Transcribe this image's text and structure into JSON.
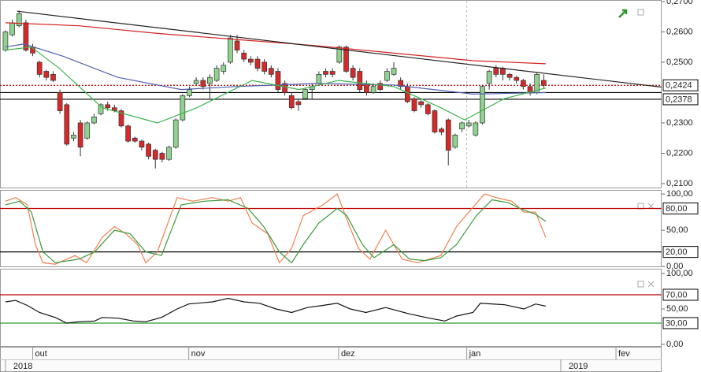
{
  "chart_data": [
    {
      "type": "candlestick",
      "xlim": [
        -0.8,
        96.3
      ],
      "xticks": [
        {
          "value": 4,
          "label": "out"
        },
        {
          "value": 26.9,
          "label": "nov"
        },
        {
          "value": 48.9,
          "label": "dez"
        },
        {
          "value": 67.7,
          "label": "jan"
        },
        {
          "value": 89.6,
          "label": "fev"
        }
      ],
      "year_labels": [
        {
          "value": 0,
          "label": "2018"
        },
        {
          "value": 81.5,
          "label": "2019"
        }
      ],
      "vlines": [
        67.7
      ],
      "ylim": [
        0.2087,
        0.2705
      ],
      "yticks": [
        {
          "value": 0.27,
          "label": "0,2700"
        },
        {
          "value": 0.26,
          "label": "0,2600"
        },
        {
          "value": 0.25,
          "label": "0,2500"
        },
        {
          "value": 0.23,
          "label": "0,2300"
        },
        {
          "value": 0.22,
          "label": "0,2200"
        },
        {
          "value": 0.21,
          "label": "0,2100"
        }
      ],
      "levels": [
        {
          "value": 0.2424,
          "label": "0,2424",
          "color": "#c00000",
          "dashed": true
        },
        {
          "value": 0.24,
          "color": "#000000"
        },
        {
          "value": 0.2378,
          "label": "0,2378",
          "color": "#000000"
        }
      ],
      "up_color": "#8fd18f",
      "down_color": "#d42a2a",
      "open": [
        0.254,
        0.259,
        0.262,
        0.263,
        0.255,
        0.25,
        0.247,
        0.246,
        0.24,
        0.236,
        0.225,
        0.23,
        0.225,
        0.23,
        0.233,
        0.236,
        0.235,
        0.234,
        0.229,
        0.225,
        0.224,
        0.223,
        0.221,
        0.22,
        0.218,
        0.222,
        0.231,
        0.239,
        0.243,
        0.244,
        0.243,
        0.244,
        0.247,
        0.25,
        0.257,
        0.253,
        0.251,
        0.251,
        0.25,
        0.248,
        0.247,
        0.243,
        0.239,
        0.237,
        0.238,
        0.241,
        0.243,
        0.247,
        0.247,
        0.25,
        0.255,
        0.248,
        0.247,
        0.243,
        0.24,
        0.243,
        0.244,
        0.246,
        0.244,
        0.242,
        0.238,
        0.237,
        0.236,
        0.234,
        0.228,
        0.231,
        0.222,
        0.228,
        0.229,
        0.226,
        0.23,
        0.243,
        0.248,
        0.248,
        0.246,
        0.245,
        0.244,
        0.242,
        0.24,
        0.244
      ],
      "high": [
        0.2605,
        0.264,
        0.267,
        0.264,
        0.256,
        0.2505,
        0.2475,
        0.247,
        0.241,
        0.2365,
        0.227,
        0.231,
        0.2305,
        0.233,
        0.2365,
        0.237,
        0.236,
        0.2345,
        0.2295,
        0.2255,
        0.2245,
        0.2235,
        0.2215,
        0.2205,
        0.2225,
        0.2315,
        0.2395,
        0.242,
        0.245,
        0.245,
        0.246,
        0.249,
        0.25,
        0.259,
        0.259,
        0.254,
        0.252,
        0.252,
        0.251,
        0.249,
        0.248,
        0.244,
        0.24,
        0.238,
        0.2415,
        0.243,
        0.247,
        0.248,
        0.248,
        0.2555,
        0.2555,
        0.249,
        0.248,
        0.244,
        0.243,
        0.244,
        0.248,
        0.25,
        0.245,
        0.243,
        0.2385,
        0.2375,
        0.2365,
        0.2345,
        0.2285,
        0.2315,
        0.2265,
        0.2305,
        0.231,
        0.2305,
        0.2425,
        0.2475,
        0.249,
        0.2485,
        0.2465,
        0.2455,
        0.2445,
        0.243,
        0.2465,
        0.246
      ],
      "low": [
        0.2535,
        0.2585,
        0.2615,
        0.2535,
        0.252,
        0.245,
        0.244,
        0.2435,
        0.233,
        0.2225,
        0.224,
        0.219,
        0.2245,
        0.2295,
        0.2325,
        0.234,
        0.2335,
        0.2285,
        0.2235,
        0.2235,
        0.221,
        0.218,
        0.215,
        0.217,
        0.2175,
        0.2215,
        0.2305,
        0.2385,
        0.2425,
        0.241,
        0.238,
        0.2435,
        0.246,
        0.2495,
        0.253,
        0.25,
        0.249,
        0.247,
        0.246,
        0.245,
        0.24,
        0.239,
        0.2345,
        0.234,
        0.2375,
        0.238,
        0.2425,
        0.245,
        0.245,
        0.2495,
        0.2465,
        0.244,
        0.24,
        0.239,
        0.2395,
        0.2405,
        0.2435,
        0.2455,
        0.241,
        0.2365,
        0.2335,
        0.235,
        0.2325,
        0.2265,
        0.226,
        0.216,
        0.2215,
        0.227,
        0.2285,
        0.2255,
        0.2295,
        0.241,
        0.245,
        0.244,
        0.244,
        0.243,
        0.241,
        0.239,
        0.2395,
        0.2415
      ],
      "close": [
        0.26,
        0.263,
        0.266,
        0.254,
        0.253,
        0.246,
        0.245,
        0.244,
        0.234,
        0.223,
        0.226,
        0.222,
        0.23,
        0.232,
        0.236,
        0.235,
        0.234,
        0.229,
        0.224,
        0.224,
        0.222,
        0.219,
        0.218,
        0.218,
        0.222,
        0.231,
        0.239,
        0.241,
        0.244,
        0.242,
        0.245,
        0.248,
        0.249,
        0.258,
        0.254,
        0.251,
        0.25,
        0.248,
        0.247,
        0.246,
        0.241,
        0.24,
        0.235,
        0.236,
        0.241,
        0.242,
        0.246,
        0.246,
        0.246,
        0.255,
        0.247,
        0.245,
        0.241,
        0.24,
        0.242,
        0.241,
        0.247,
        0.248,
        0.242,
        0.237,
        0.234,
        0.236,
        0.233,
        0.227,
        0.227,
        0.221,
        0.226,
        0.23,
        0.23,
        0.23,
        0.242,
        0.247,
        0.246,
        0.246,
        0.245,
        0.244,
        0.242,
        0.24,
        0.246,
        0.2424
      ],
      "series": [
        {
          "color": "#d62020",
          "x": [
            0,
            10.8,
            22.3,
            33.9,
            45.4,
            57,
            68.6,
            79.3
          ],
          "values": [
            0.263,
            0.262,
            0.2595,
            0.2575,
            0.2555,
            0.253,
            0.2505,
            0.2495
          ]
        },
        {
          "color": "#5060b0",
          "x": [
            0,
            2.7,
            8.4,
            16.5,
            25.8,
            33.9,
            45.4,
            57,
            68.6,
            79.3
          ],
          "values": [
            0.255,
            0.256,
            0.252,
            0.245,
            0.241,
            0.242,
            0.243,
            0.2425,
            0.2395,
            0.24
          ]
        },
        {
          "color": "#3cb34a",
          "x": [
            0,
            3.8,
            7.9,
            14.2,
            22.3,
            28.1,
            36.2,
            43.1,
            48.9,
            57,
            63.9,
            67.4,
            73.2,
            79.3
          ],
          "values": [
            0.254,
            0.255,
            0.248,
            0.235,
            0.23,
            0.235,
            0.244,
            0.241,
            0.244,
            0.242,
            0.235,
            0.231,
            0.238,
            0.2415
          ]
        },
        {
          "color": "#222222",
          "x": [
            1.7,
            96.3
          ],
          "values": [
            0.2668,
            0.2418
          ]
        }
      ]
    },
    {
      "type": "line",
      "ylim": [
        -1.1,
        105.6
      ],
      "yticks": [
        {
          "value": 100,
          "label": "100,00"
        },
        {
          "value": 50,
          "label": "50,00"
        },
        {
          "value": 0,
          "label": "0,00"
        }
      ],
      "levels": [
        {
          "value": 80,
          "label": "80,00",
          "color": "#c00000"
        },
        {
          "value": 20,
          "label": "20,00",
          "color": "#000000"
        }
      ],
      "series": [
        {
          "color": "#f08050",
          "x": [
            0,
            1.5,
            3.2,
            4.4,
            5.5,
            7.3,
            10.2,
            11.9,
            14.2,
            16,
            17.7,
            19.4,
            20.6,
            22.3,
            25.2,
            27.5,
            30.4,
            32.7,
            34.5,
            36.2,
            38.5,
            40.2,
            42,
            43.7,
            46.6,
            48.7,
            50.1,
            51.8,
            53.5,
            55.8,
            58.2,
            60.5,
            62.2,
            63.9,
            66.2,
            68,
            70.3,
            72,
            74.3,
            76.1,
            77.8,
            79.3
          ],
          "values": [
            90,
            95,
            85,
            30,
            5,
            3,
            15,
            5,
            40,
            55,
            45,
            30,
            5,
            20,
            95,
            90,
            95,
            90,
            95,
            60,
            45,
            5,
            25,
            70,
            85,
            100,
            65,
            25,
            10,
            50,
            10,
            5,
            10,
            15,
            55,
            75,
            100,
            95,
            90,
            75,
            75,
            40
          ]
        },
        {
          "color": "#3a9a3a",
          "x": [
            0,
            2.1,
            3.8,
            5.5,
            7.3,
            10.8,
            13.1,
            16,
            18.3,
            20.6,
            22.9,
            25.8,
            29.2,
            32.7,
            35.6,
            37.9,
            40.2,
            42,
            43.7,
            46,
            48.7,
            50.1,
            52.4,
            54.1,
            57,
            59.3,
            61.6,
            63.9,
            66.2,
            69.1,
            71.4,
            73.8,
            75.5,
            77.8,
            79.3
          ],
          "values": [
            85,
            90,
            75,
            20,
            5,
            10,
            20,
            50,
            45,
            20,
            15,
            85,
            90,
            92,
            80,
            55,
            20,
            5,
            30,
            60,
            80,
            70,
            30,
            12,
            30,
            10,
            8,
            12,
            30,
            70,
            92,
            88,
            80,
            72,
            62
          ]
        }
      ]
    },
    {
      "type": "line",
      "ylim": [
        -3.4,
        106.7
      ],
      "yticks": [
        {
          "value": 100,
          "label": "100,00"
        },
        {
          "value": 50,
          "label": "50,00"
        },
        {
          "value": 0,
          "label": "0,00"
        }
      ],
      "levels": [
        {
          "value": 70,
          "label": "70,00",
          "color": "#c00000"
        },
        {
          "value": 30,
          "label": "30,00",
          "color": "#2a9a2a"
        }
      ],
      "series": [
        {
          "color": "#111111",
          "x": [
            0,
            1.5,
            3.2,
            5,
            7.3,
            9,
            10.8,
            13.1,
            14.2,
            16.5,
            18.8,
            20.6,
            22.9,
            25.2,
            26.9,
            30.4,
            32.7,
            35,
            37.3,
            39.7,
            42,
            44.3,
            46.6,
            48.7,
            50.6,
            52.9,
            55.8,
            59.3,
            62.2,
            64.5,
            66.2,
            68.6,
            69.7,
            73.2,
            76.1,
            77.8,
            79.3
          ],
          "values": [
            60,
            62,
            55,
            45,
            38,
            30,
            32,
            33,
            38,
            37,
            33,
            32,
            38,
            50,
            57,
            60,
            65,
            60,
            58,
            50,
            45,
            52,
            55,
            58,
            50,
            45,
            52,
            43,
            37,
            33,
            40,
            45,
            58,
            56,
            50,
            57,
            54
          ]
        }
      ]
    }
  ]
}
